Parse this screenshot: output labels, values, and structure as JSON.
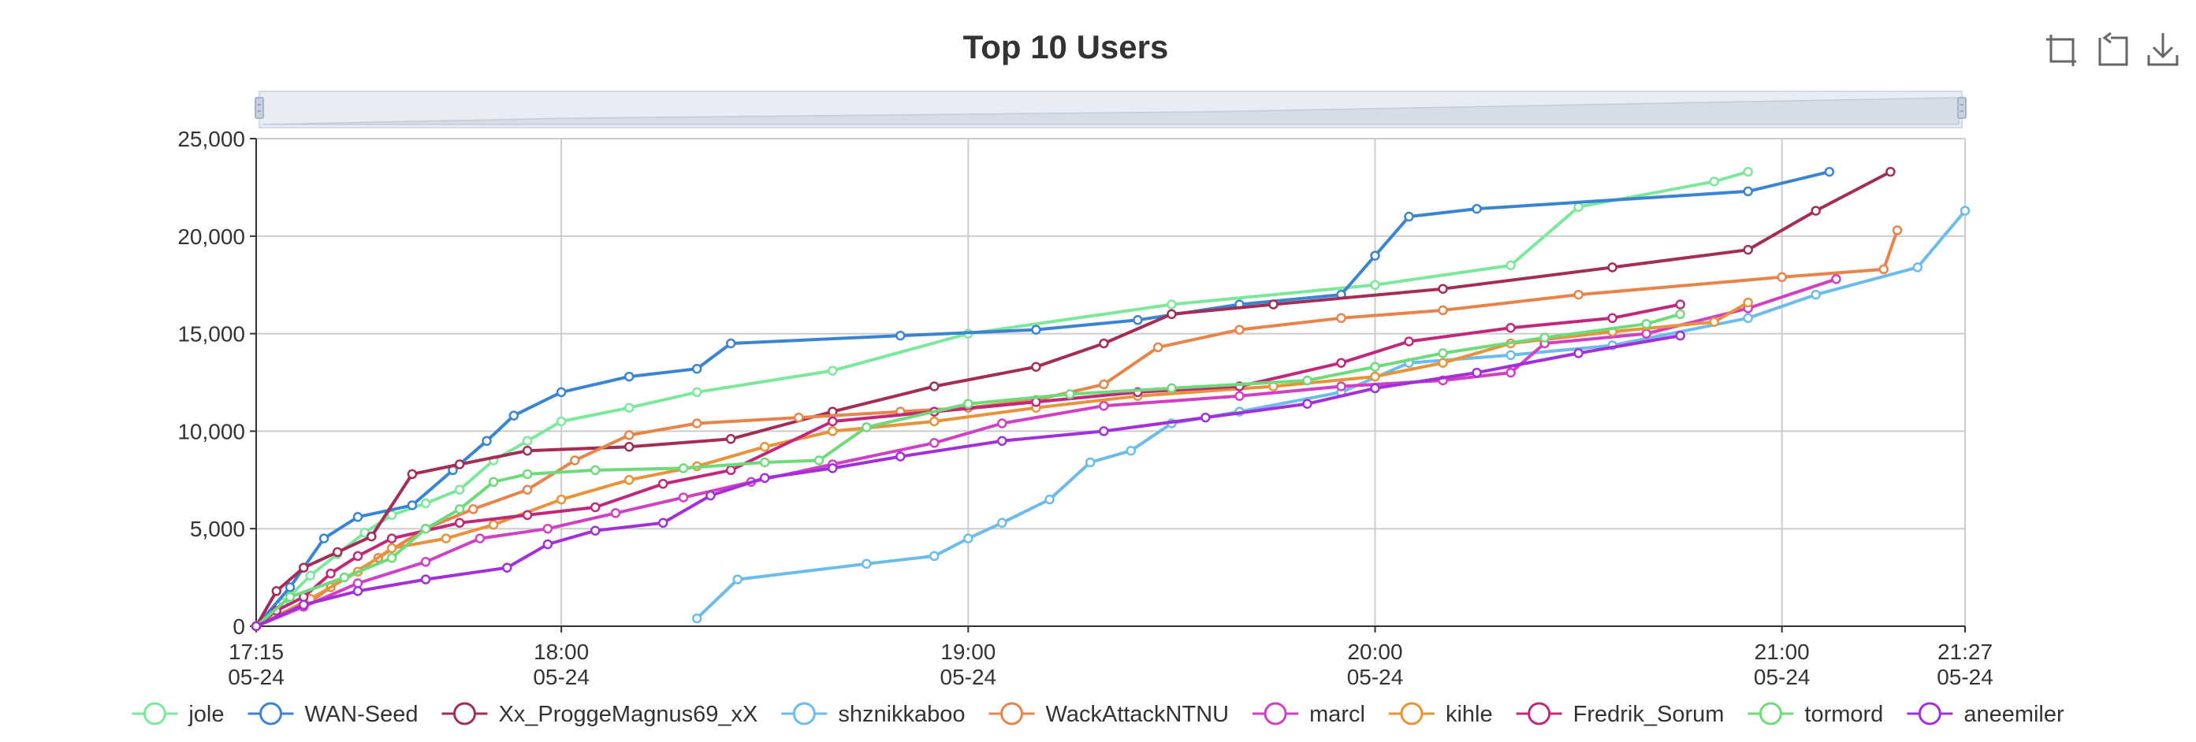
{
  "toolbox": [
    {
      "name": "zoom-icon"
    },
    {
      "name": "zoom-reset-icon"
    },
    {
      "name": "download-icon"
    }
  ],
  "chart_data": {
    "type": "line",
    "title": "Top 10 Users",
    "xlabel": "",
    "ylabel": "",
    "x_range": [
      "2024-05-24 17:15",
      "2024-05-24 21:27"
    ],
    "ylim": [
      0,
      25000
    ],
    "y_ticks": [
      "0",
      "5,000",
      "10,000",
      "15,000",
      "20,000",
      "25,000"
    ],
    "x_ticks": [
      {
        "time": "17:15",
        "date": "05-24"
      },
      {
        "time": "18:00",
        "date": "05-24"
      },
      {
        "time": "19:00",
        "date": "05-24"
      },
      {
        "time": "20:00",
        "date": "05-24"
      },
      {
        "time": "21:00",
        "date": "05-24"
      },
      {
        "time": "21:27",
        "date": "05-24"
      }
    ],
    "grid": true,
    "legend_position": "bottom",
    "data_zoom_slider": true,
    "series": [
      {
        "name": "jole",
        "color": "#7CE89B",
        "points": [
          [
            "17:15",
            0
          ],
          [
            "17:19",
            1200
          ],
          [
            "17:23",
            2600
          ],
          [
            "17:27",
            3700
          ],
          [
            "17:31",
            4800
          ],
          [
            "17:35",
            5700
          ],
          [
            "17:40",
            6300
          ],
          [
            "17:45",
            7000
          ],
          [
            "17:50",
            8500
          ],
          [
            "17:55",
            9500
          ],
          [
            "18:00",
            10500
          ],
          [
            "18:10",
            11200
          ],
          [
            "18:20",
            12000
          ],
          [
            "18:40",
            13100
          ],
          [
            "19:00",
            15000
          ],
          [
            "19:30",
            16500
          ],
          [
            "20:00",
            17500
          ],
          [
            "20:20",
            18500
          ],
          [
            "20:30",
            21500
          ],
          [
            "20:50",
            22800
          ],
          [
            "20:55",
            23300
          ]
        ]
      },
      {
        "name": "WAN-Seed",
        "color": "#3A84D4",
        "points": [
          [
            "17:15",
            0
          ],
          [
            "17:20",
            2000
          ],
          [
            "17:25",
            4500
          ],
          [
            "17:30",
            5600
          ],
          [
            "17:38",
            6200
          ],
          [
            "17:44",
            8000
          ],
          [
            "17:49",
            9500
          ],
          [
            "17:53",
            10800
          ],
          [
            "18:00",
            12000
          ],
          [
            "18:10",
            12800
          ],
          [
            "18:20",
            13200
          ],
          [
            "18:25",
            14500
          ],
          [
            "18:50",
            14900
          ],
          [
            "19:10",
            15200
          ],
          [
            "19:25",
            15700
          ],
          [
            "19:40",
            16500
          ],
          [
            "19:55",
            17000
          ],
          [
            "20:00",
            19000
          ],
          [
            "20:05",
            21000
          ],
          [
            "20:15",
            21400
          ],
          [
            "20:55",
            22300
          ],
          [
            "21:07",
            23300
          ]
        ]
      },
      {
        "name": "Xx_ProggeMagnus69_xX",
        "color": "#A32D57",
        "points": [
          [
            "17:15",
            0
          ],
          [
            "17:18",
            1800
          ],
          [
            "17:22",
            3000
          ],
          [
            "17:27",
            3800
          ],
          [
            "17:32",
            4600
          ],
          [
            "17:38",
            7800
          ],
          [
            "17:45",
            8300
          ],
          [
            "17:55",
            9000
          ],
          [
            "18:10",
            9200
          ],
          [
            "18:25",
            9600
          ],
          [
            "18:40",
            11000
          ],
          [
            "18:55",
            12300
          ],
          [
            "19:10",
            13300
          ],
          [
            "19:20",
            14500
          ],
          [
            "19:30",
            16000
          ],
          [
            "19:45",
            16500
          ],
          [
            "20:10",
            17300
          ],
          [
            "20:35",
            18400
          ],
          [
            "20:55",
            19300
          ],
          [
            "21:05",
            21300
          ],
          [
            "21:16",
            23300
          ]
        ]
      },
      {
        "name": "shznikkaboo",
        "color": "#6BBCEB",
        "points": [
          [
            "18:20",
            400
          ],
          [
            "18:26",
            2400
          ],
          [
            "18:45",
            3200
          ],
          [
            "18:55",
            3600
          ],
          [
            "19:00",
            4500
          ],
          [
            "19:05",
            5300
          ],
          [
            "19:12",
            6500
          ],
          [
            "19:18",
            8400
          ],
          [
            "19:24",
            9000
          ],
          [
            "19:30",
            10400
          ],
          [
            "19:40",
            11000
          ],
          [
            "19:55",
            12000
          ],
          [
            "20:05",
            13500
          ],
          [
            "20:20",
            13900
          ],
          [
            "20:35",
            14400
          ],
          [
            "20:55",
            15800
          ],
          [
            "21:05",
            17000
          ],
          [
            "21:20",
            18400
          ],
          [
            "21:27",
            21300
          ]
        ]
      },
      {
        "name": "WackAttackNTNU",
        "color": "#E8834A",
        "points": [
          [
            "17:15",
            0
          ],
          [
            "17:22",
            1000
          ],
          [
            "17:26",
            2000
          ],
          [
            "17:33",
            3500
          ],
          [
            "17:40",
            5000
          ],
          [
            "17:47",
            6000
          ],
          [
            "17:55",
            7000
          ],
          [
            "18:02",
            8500
          ],
          [
            "18:10",
            9800
          ],
          [
            "18:20",
            10400
          ],
          [
            "18:35",
            10700
          ],
          [
            "18:50",
            11000
          ],
          [
            "19:00",
            11200
          ],
          [
            "19:10",
            11600
          ],
          [
            "19:20",
            12400
          ],
          [
            "19:28",
            14300
          ],
          [
            "19:40",
            15200
          ],
          [
            "19:55",
            15800
          ],
          [
            "20:10",
            16200
          ],
          [
            "20:30",
            17000
          ],
          [
            "21:00",
            17900
          ],
          [
            "21:15",
            18300
          ],
          [
            "21:17",
            20300
          ]
        ]
      },
      {
        "name": "marcl",
        "color": "#D13FC4",
        "points": [
          [
            "17:15",
            0
          ],
          [
            "17:22",
            1000
          ],
          [
            "17:30",
            2200
          ],
          [
            "17:40",
            3300
          ],
          [
            "17:48",
            4500
          ],
          [
            "17:58",
            5000
          ],
          [
            "18:08",
            5800
          ],
          [
            "18:18",
            6600
          ],
          [
            "18:28",
            7400
          ],
          [
            "18:40",
            8300
          ],
          [
            "18:55",
            9400
          ],
          [
            "19:05",
            10400
          ],
          [
            "19:20",
            11300
          ],
          [
            "19:40",
            11800
          ],
          [
            "19:55",
            12300
          ],
          [
            "20:10",
            12600
          ],
          [
            "20:20",
            13000
          ],
          [
            "20:25",
            14500
          ],
          [
            "20:40",
            15000
          ],
          [
            "20:55",
            16300
          ],
          [
            "21:08",
            17800
          ]
        ]
      },
      {
        "name": "kihle",
        "color": "#E8923A",
        "points": [
          [
            "17:15",
            0
          ],
          [
            "17:23",
            1400
          ],
          [
            "17:30",
            2800
          ],
          [
            "17:35",
            4000
          ],
          [
            "17:43",
            4500
          ],
          [
            "17:50",
            5200
          ],
          [
            "18:00",
            6500
          ],
          [
            "18:10",
            7500
          ],
          [
            "18:20",
            8200
          ],
          [
            "18:30",
            9200
          ],
          [
            "18:40",
            10000
          ],
          [
            "18:55",
            10500
          ],
          [
            "19:10",
            11200
          ],
          [
            "19:25",
            11800
          ],
          [
            "19:45",
            12300
          ],
          [
            "20:00",
            12800
          ],
          [
            "20:10",
            13500
          ],
          [
            "20:20",
            14500
          ],
          [
            "20:35",
            15100
          ],
          [
            "20:50",
            15600
          ],
          [
            "20:55",
            16600
          ]
        ]
      },
      {
        "name": "Fredrik_Sorum",
        "color": "#C2287A",
        "points": [
          [
            "17:15",
            0
          ],
          [
            "17:18",
            800
          ],
          [
            "17:22",
            1500
          ],
          [
            "17:26",
            2700
          ],
          [
            "17:30",
            3600
          ],
          [
            "17:35",
            4500
          ],
          [
            "17:45",
            5300
          ],
          [
            "17:55",
            5700
          ],
          [
            "18:05",
            6100
          ],
          [
            "18:15",
            7300
          ],
          [
            "18:25",
            8000
          ],
          [
            "18:40",
            10500
          ],
          [
            "18:55",
            11000
          ],
          [
            "19:10",
            11500
          ],
          [
            "19:25",
            12000
          ],
          [
            "19:40",
            12300
          ],
          [
            "19:55",
            13500
          ],
          [
            "20:05",
            14600
          ],
          [
            "20:20",
            15300
          ],
          [
            "20:35",
            15800
          ],
          [
            "20:45",
            16500
          ]
        ]
      },
      {
        "name": "tormord",
        "color": "#6DDB7A",
        "points": [
          [
            "17:15",
            0
          ],
          [
            "17:20",
            1500
          ],
          [
            "17:28",
            2500
          ],
          [
            "17:35",
            3500
          ],
          [
            "17:40",
            5000
          ],
          [
            "17:45",
            6000
          ],
          [
            "17:50",
            7400
          ],
          [
            "17:55",
            7800
          ],
          [
            "18:05",
            8000
          ],
          [
            "18:18",
            8100
          ],
          [
            "18:30",
            8400
          ],
          [
            "18:38",
            8500
          ],
          [
            "18:45",
            10200
          ],
          [
            "19:00",
            11400
          ],
          [
            "19:15",
            11900
          ],
          [
            "19:30",
            12200
          ],
          [
            "19:50",
            12600
          ],
          [
            "20:00",
            13300
          ],
          [
            "20:10",
            14000
          ],
          [
            "20:25",
            14800
          ],
          [
            "20:40",
            15500
          ],
          [
            "20:45",
            16000
          ]
        ]
      },
      {
        "name": "aneemiler",
        "color": "#A32FDB",
        "points": [
          [
            "17:15",
            0
          ],
          [
            "17:22",
            1100
          ],
          [
            "17:30",
            1800
          ],
          [
            "17:40",
            2400
          ],
          [
            "17:52",
            3000
          ],
          [
            "17:58",
            4200
          ],
          [
            "18:05",
            4900
          ],
          [
            "18:15",
            5300
          ],
          [
            "18:22",
            6700
          ],
          [
            "18:30",
            7600
          ],
          [
            "18:40",
            8100
          ],
          [
            "18:50",
            8700
          ],
          [
            "19:05",
            9500
          ],
          [
            "19:20",
            10000
          ],
          [
            "19:35",
            10700
          ],
          [
            "19:50",
            11400
          ],
          [
            "20:00",
            12200
          ],
          [
            "20:15",
            13000
          ],
          [
            "20:30",
            14000
          ],
          [
            "20:45",
            14900
          ]
        ]
      }
    ]
  }
}
